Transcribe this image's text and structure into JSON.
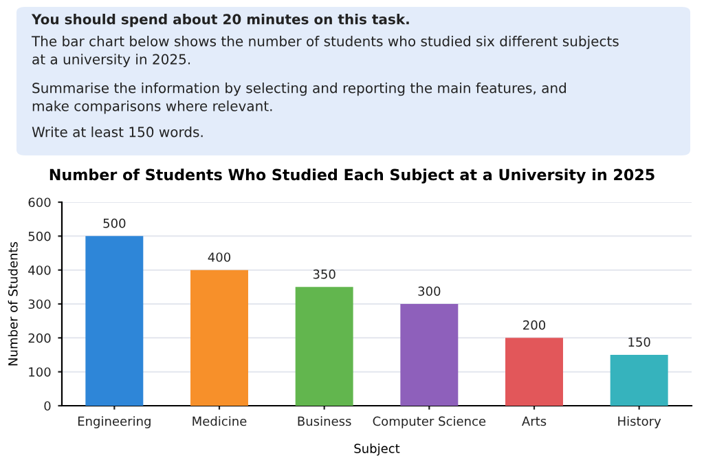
{
  "chart_data": {
    "type": "bar",
    "title": "Number of Students Who Studied Each Subject at a University in 2025",
    "xlabel": "Subject",
    "ylabel": "Number of Students",
    "annotations": [
      "You should spend about 20 minutes on this task.",
      "The bar chart below shows the number of students who studied six different subjects\nat a university in 2025.",
      "Summarise the information by selecting and reporting the main features, and\nmake comparisons where relevant.",
      "Write at least 150 words."
    ],
    "categories": [
      "Engineering",
      "Medicine",
      "Business",
      "Computer Science",
      "Arts",
      "History"
    ],
    "values": [
      500,
      400,
      350,
      300,
      200,
      150
    ],
    "colors": [
      "#2e86d8",
      "#f7902a",
      "#62b64e",
      "#8e60bb",
      "#e2575a",
      "#36b3bd"
    ],
    "ylim": [
      0,
      600
    ],
    "yticks": [
      0,
      100,
      200,
      300,
      400,
      500,
      600
    ],
    "grid": "y",
    "data_labels": true
  }
}
